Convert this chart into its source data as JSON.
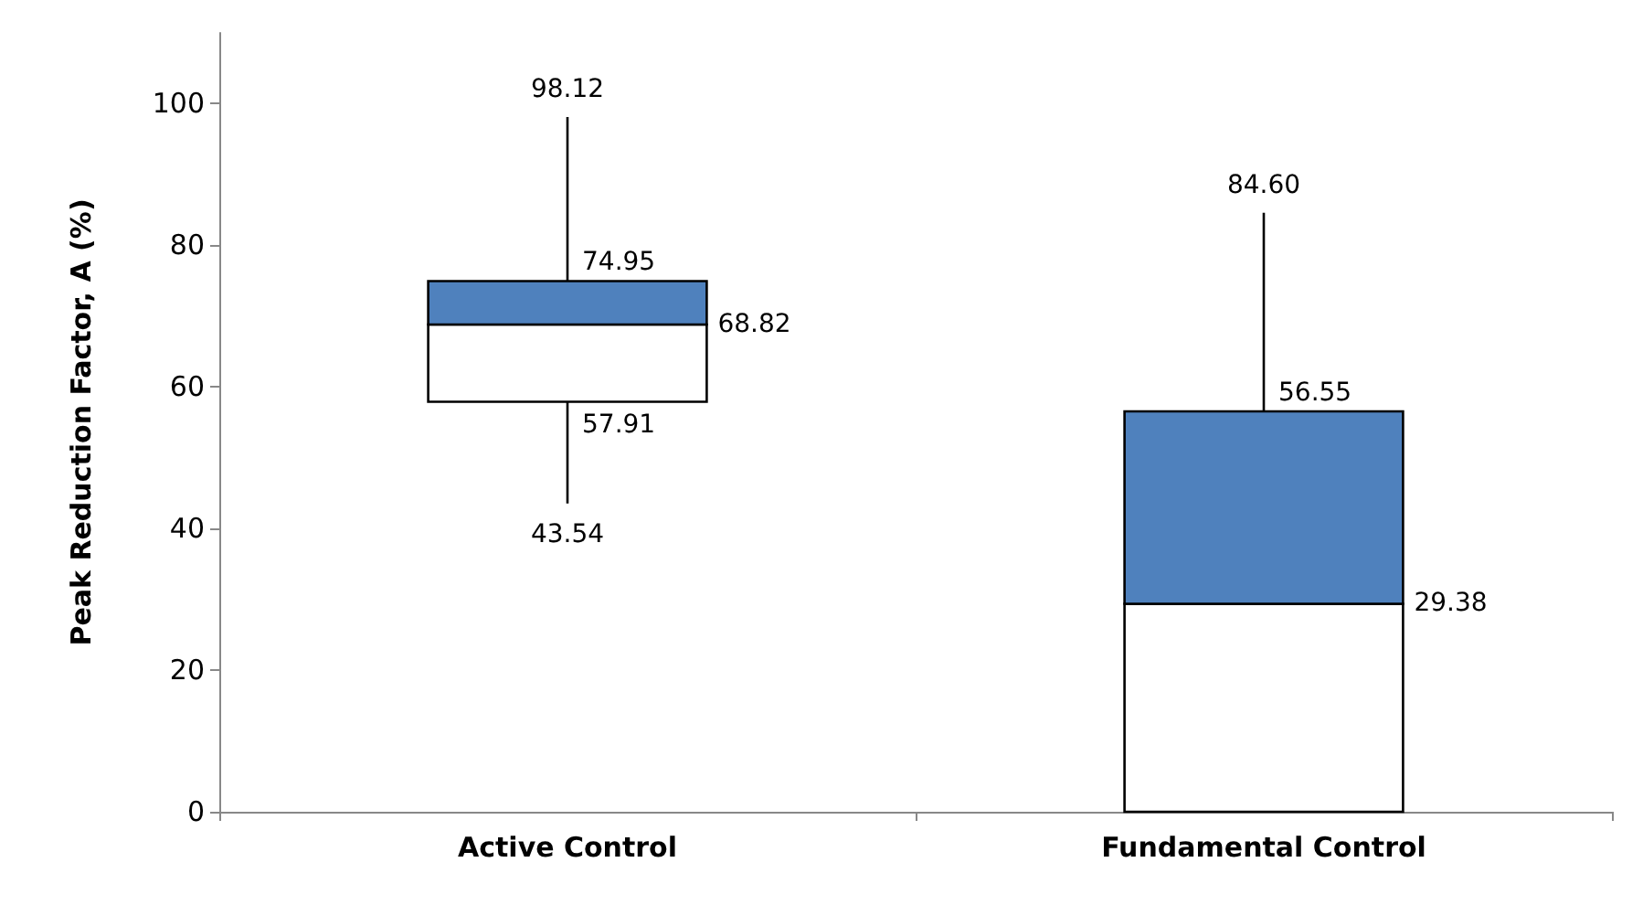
{
  "chart_data": {
    "type": "box",
    "ylabel": "Peak Reduction Factor, A (%)",
    "categories": [
      "Active Control",
      "Fundamental Control"
    ],
    "boxes": [
      {
        "low": 43.54,
        "q1": 57.91,
        "median": 68.82,
        "q3": 74.95,
        "high": 98.12
      },
      {
        "low": 0,
        "q1": 0,
        "median": 29.38,
        "q3": 56.55,
        "high": 84.6
      }
    ],
    "value_labels": [
      [
        "43.54",
        "57.91",
        "68.82",
        "74.95",
        "98.12"
      ],
      [
        null,
        null,
        "29.38",
        "56.55",
        "84.60"
      ]
    ],
    "color": "#4f81bd",
    "ylim": [
      0,
      110
    ],
    "yticks": [
      0,
      20,
      40,
      60,
      80,
      100
    ]
  }
}
